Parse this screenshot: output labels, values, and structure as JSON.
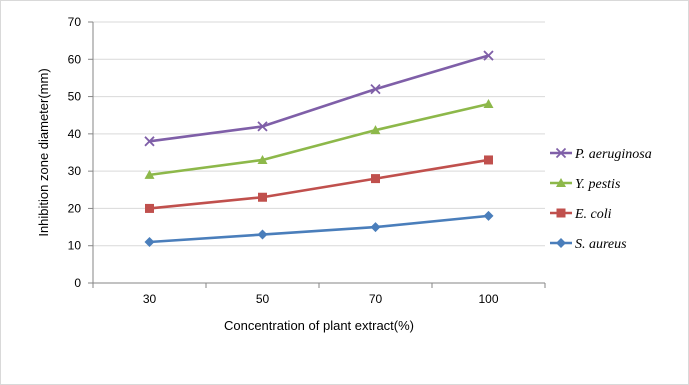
{
  "chart_data": {
    "type": "line",
    "categories": [
      "30",
      "50",
      "70",
      "100"
    ],
    "series": [
      {
        "name": "P. aeruginosa",
        "values": [
          38,
          42,
          52,
          61
        ],
        "color": "#7F5FA8",
        "marker": "x"
      },
      {
        "name": "Y. pestis",
        "values": [
          29,
          33,
          41,
          48
        ],
        "color": "#8DB84A",
        "marker": "triangle"
      },
      {
        "name": "E. coli",
        "values": [
          20,
          23,
          28,
          33
        ],
        "color": "#C0504D",
        "marker": "square"
      },
      {
        "name": "S. aureus",
        "values": [
          11,
          13,
          15,
          18
        ],
        "color": "#4A7EBB",
        "marker": "diamond"
      }
    ],
    "title": "",
    "xlabel": "Concentration of plant extract(%)",
    "ylabel": "Inhibition zone diameter(mm)",
    "ylim": [
      0,
      70
    ],
    "yticks": [
      "0",
      "10",
      "20",
      "30",
      "40",
      "50",
      "60",
      "70"
    ],
    "grid": "horizontal",
    "legend_position": "right"
  }
}
